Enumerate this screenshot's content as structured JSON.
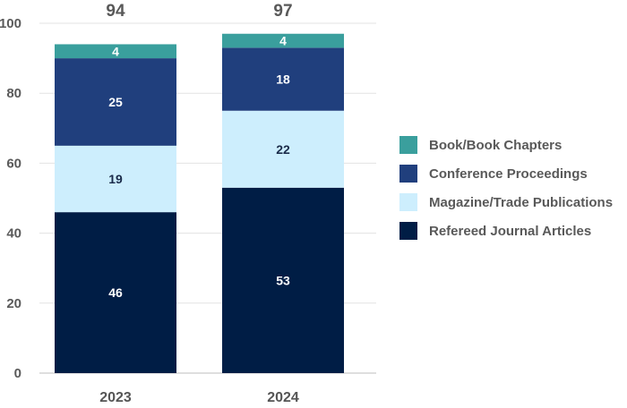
{
  "chart_data": {
    "type": "bar",
    "stacked": true,
    "categories": [
      "2023",
      "2024"
    ],
    "totals": [
      "94",
      "97"
    ],
    "series": [
      {
        "name": "Refereed Journal Articles",
        "values": [
          46,
          53
        ],
        "color": "#001d45",
        "label_color": "#ffffff"
      },
      {
        "name": "Magazine/Trade Publications",
        "values": [
          19,
          22
        ],
        "color": "#cdeefd",
        "label_color": "#1a2b4a"
      },
      {
        "name": "Conference Proceedings",
        "values": [
          25,
          18
        ],
        "color": "#203f7d",
        "label_color": "#ffffff"
      },
      {
        "name": "Book/Book Chapters",
        "values": [
          4,
          4
        ],
        "color": "#3a9f9d",
        "label_color": "#ffffff"
      }
    ],
    "legend_order": [
      "Book/Book Chapters",
      "Conference Proceedings",
      "Magazine/Trade Publications",
      "Refereed Journal Articles"
    ],
    "ylim": [
      0,
      100
    ],
    "yticks": [
      "0",
      "20",
      "40",
      "60",
      "80",
      "100"
    ],
    "title": "",
    "xlabel": "",
    "ylabel": "",
    "legend_position": "right",
    "grid": true
  }
}
